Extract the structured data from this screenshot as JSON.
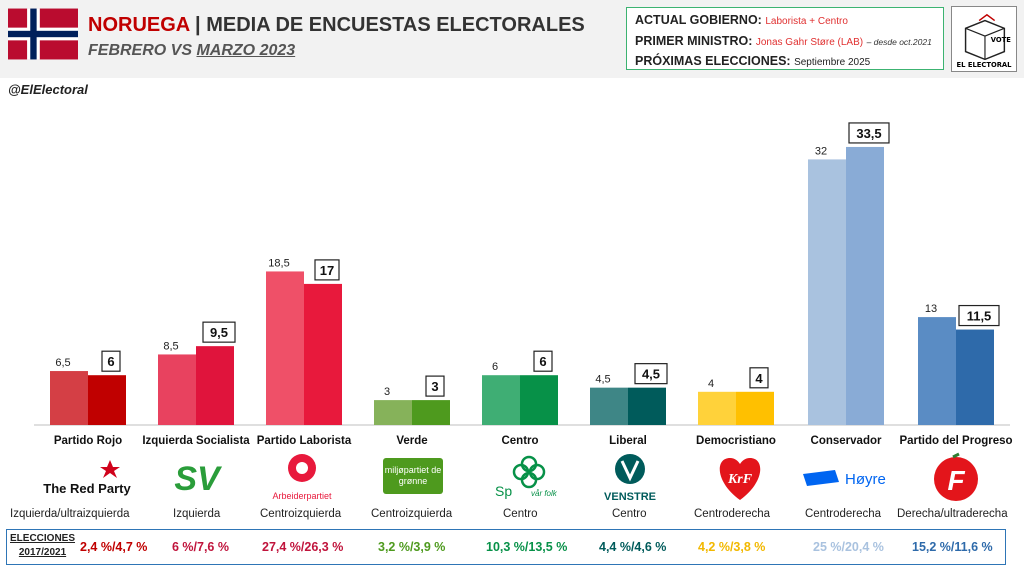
{
  "header": {
    "country": "NORUEGA",
    "title_rest": "| MEDIA DE ENCUESTAS ELECTORALES",
    "subtitle_a": "FEBRERO VS",
    "subtitle_b": "MARZO 2023",
    "handle": "@ElElectoral"
  },
  "info": {
    "gov_label": "ACTUAL GOBIERNO:",
    "gov_value": "Laborista + Centro",
    "pm_label": "PRIMER MINISTRO:",
    "pm_value": "Jonas Gahr Støre (LAB)",
    "pm_since": "– desde oct.2021",
    "next_label": "PRÓXIMAS ELECCIONES:",
    "next_value": "Septiembre 2025"
  },
  "brand": {
    "vote": "VOTE",
    "name": "EL ELECTORAL"
  },
  "elections_label_1": "ELECCIONES",
  "elections_label_2": "2017/2021",
  "chart_data": {
    "type": "bar",
    "categories": [
      "Partido Rojo",
      "Izquierda Socialista",
      "Partido Laborista",
      "Verde",
      "Centro",
      "Liberal",
      "Democristiano",
      "Conservador",
      "Partido del Progreso"
    ],
    "series": [
      {
        "values": [
          6.5,
          8.5,
          18.5,
          3,
          6,
          4.5,
          4,
          32,
          13
        ]
      },
      {
        "values": [
          6,
          9.5,
          17,
          3,
          6,
          4.5,
          4,
          33.5,
          11.5
        ]
      }
    ],
    "value_labels": {
      "feb": [
        "6,5",
        "8,5",
        "18,5",
        "3",
        "6",
        "4,5",
        "4",
        "32",
        "13"
      ],
      "mar": [
        "6",
        "9,5",
        "17",
        "3",
        "6",
        "4,5",
        "4",
        "33,5",
        "11,5"
      ]
    },
    "colors_feb": [
      "#d43f45",
      "#e8425f",
      "#ef5068",
      "#86b25a",
      "#3fae74",
      "#3e8686",
      "#ffd23a",
      "#a9c2df",
      "#5a8cc4"
    ],
    "colors_mar": [
      "#c00000",
      "#e0143c",
      "#e8193c",
      "#4e9a1e",
      "#079148",
      "#005b5b",
      "#ffc000",
      "#89abd6",
      "#2e6aaa"
    ],
    "ylim": [
      0,
      35
    ]
  },
  "parties": [
    {
      "logo_text": "The Red Party",
      "ideology": "Izquierda/ultraizquierda",
      "elections": "2,4 %/4,7 %",
      "color": "#c00000"
    },
    {
      "logo_text": "SV",
      "ideology": "Izquierda",
      "elections": "6 %/7,6 %",
      "color": "#c0143c"
    },
    {
      "logo_text": "Arbeiderpartiet",
      "ideology": "Centroizquierda",
      "elections": "27,4 %/26,3 %",
      "color": "#c0143c"
    },
    {
      "logo_text": "miljøpartiet de grønne",
      "ideology": "Centroizquierda",
      "elections": "3,2 %/3,9 %",
      "color": "#4e9a1e"
    },
    {
      "logo_text": "Sp",
      "logo_text_2": "vår folk",
      "ideology": "Centro",
      "elections": "10,3 %/13,5 %",
      "color": "#079148"
    },
    {
      "logo_text": "VENSTRE",
      "ideology": "Centro",
      "elections": "4,4 %/4,6 %",
      "color": "#005b5b"
    },
    {
      "logo_text": "KrF",
      "ideology": "Centroderecha",
      "elections": "4,2 %/3,8 %",
      "color": "#f2b800"
    },
    {
      "logo_text": "Høyre",
      "ideology": "Centroderecha",
      "elections": "25 %/20,4 %",
      "color": "#a9c2df"
    },
    {
      "logo_text": "F",
      "ideology": "Derecha/ultraderecha",
      "elections": "15,2 %/11,6 %",
      "color": "#2e6aaa"
    }
  ]
}
